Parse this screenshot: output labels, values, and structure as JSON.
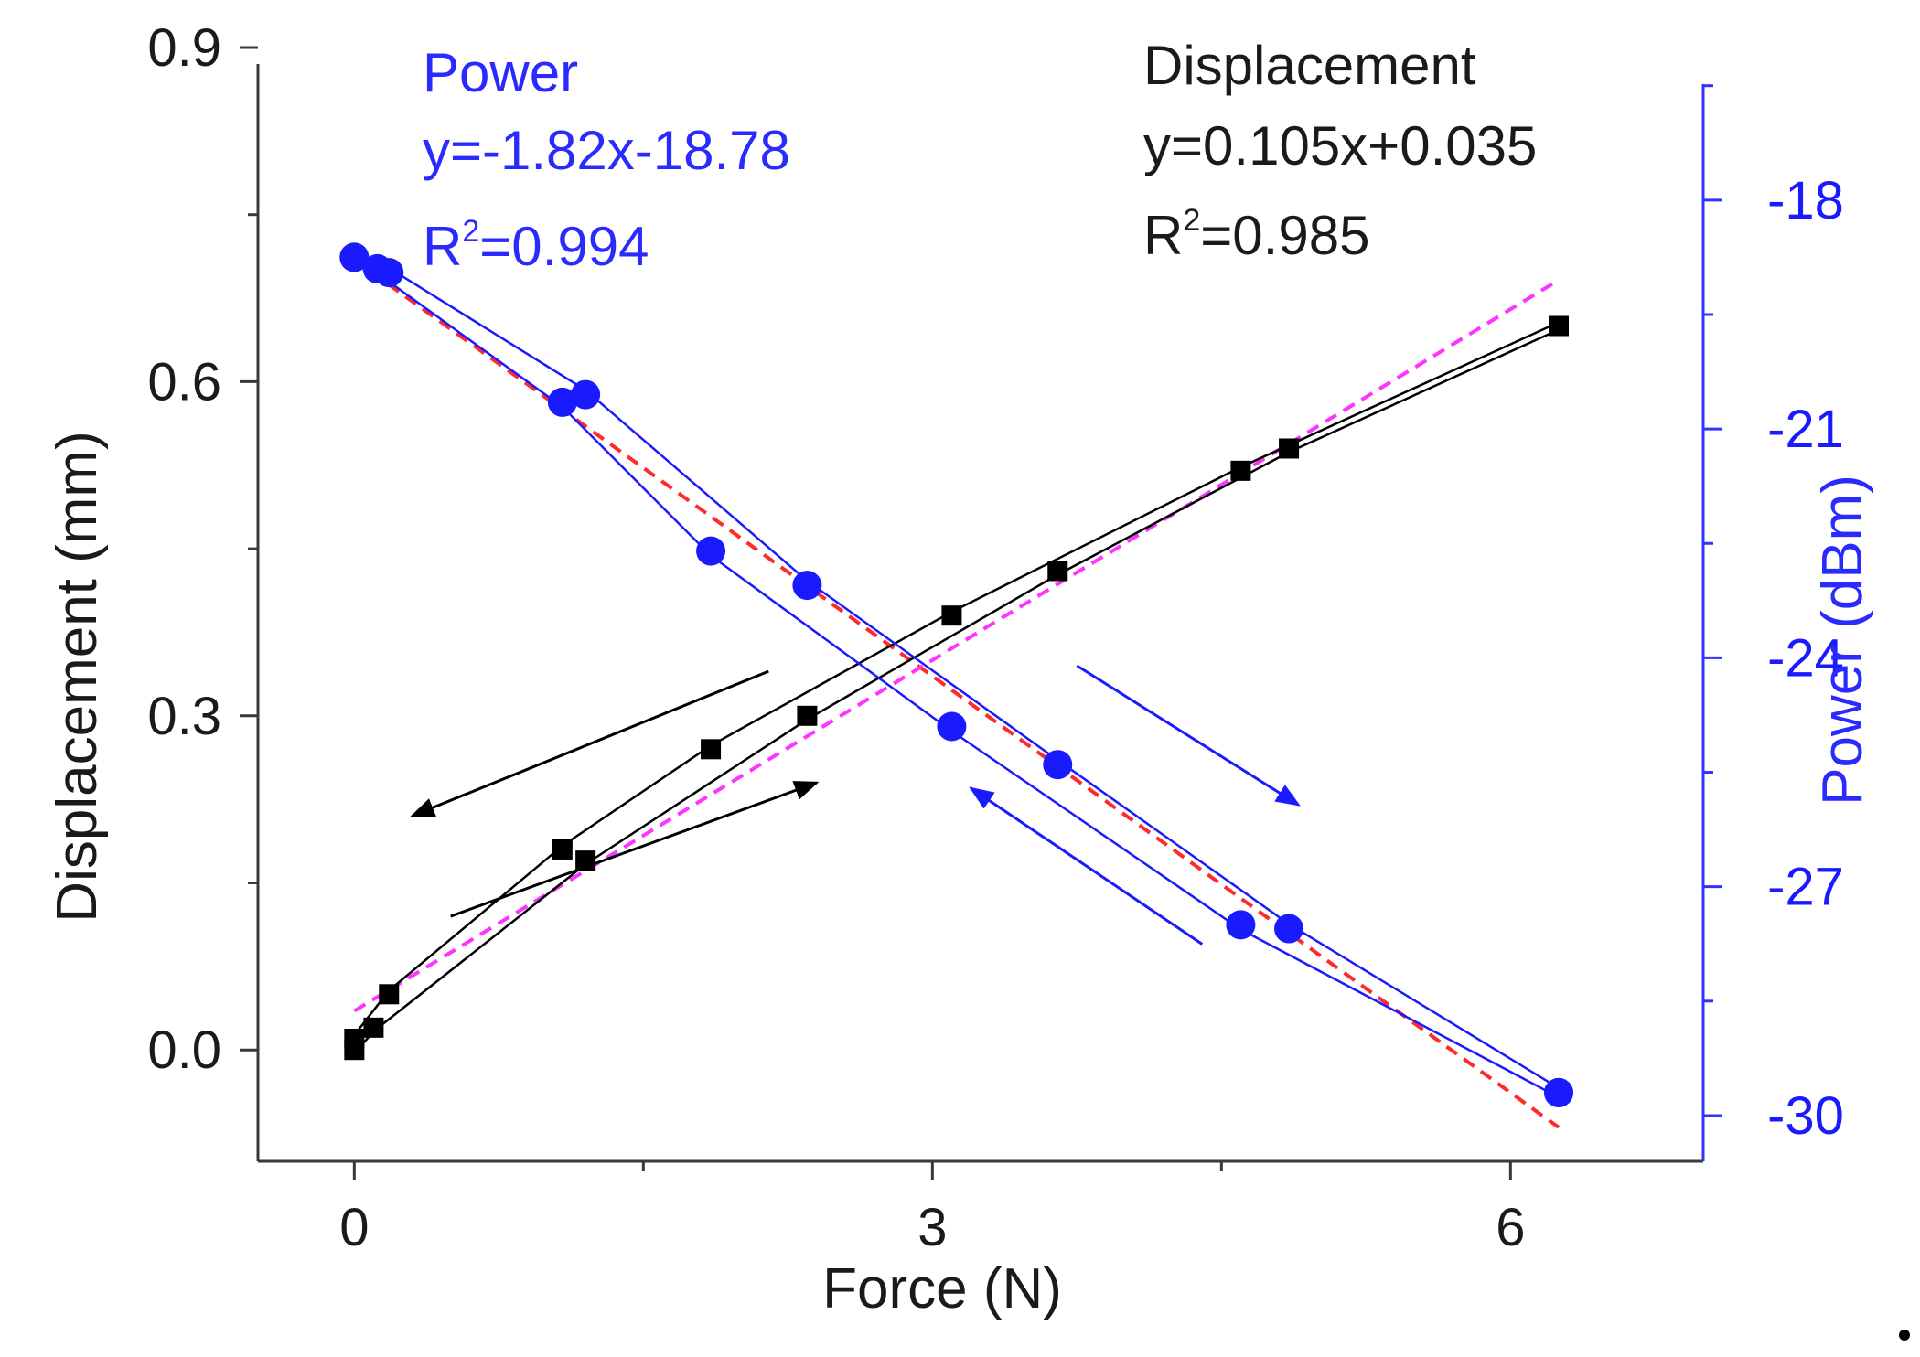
{
  "chart_data": {
    "type": "scatter",
    "xlabel": "Force (N)",
    "ylabel_left": "Displacement (mm)",
    "ylabel_right": "Power (dBm)",
    "xlim": [
      -0.5,
      7.0
    ],
    "ylim_left": [
      -0.1,
      0.9
    ],
    "ylim_right": [
      -30.6,
      -16.0
    ],
    "x_ticks": [
      0,
      3,
      6
    ],
    "x_tick_labels": [
      "0",
      "3",
      "6"
    ],
    "y_left_ticks": [
      0.0,
      0.3,
      0.6,
      0.9
    ],
    "y_left_tick_labels": [
      "0.0",
      "0.3",
      "0.6",
      "0.9"
    ],
    "y_right_ticks": [
      -18,
      -21,
      -24,
      -27,
      -30
    ],
    "y_right_tick_labels": [
      "-18",
      "-21",
      "-24",
      "-27",
      "-30"
    ],
    "grid": false,
    "colors": {
      "displacement": "#000000",
      "power": "#1a1aff",
      "power_fit": "#ff2a2a",
      "displacement_fit": "#ff33ff",
      "right_axis": "#3333ff"
    },
    "annotations": {
      "power_title": "Power",
      "power_equation": "y=-1.82x-18.78",
      "power_r2_prefix": "R",
      "power_r2_sup": "2",
      "power_r2_value": "=0.994",
      "disp_title": "Displacement",
      "disp_equation": "y=0.105x+0.035",
      "disp_r2_prefix": "R",
      "disp_r2_sup": "2",
      "disp_r2_value": "=0.985"
    },
    "series": [
      {
        "axis": "left",
        "marker": "square",
        "loading_path": {
          "x": [
            0.0,
            0.1,
            1.2,
            2.35,
            3.65,
            4.85,
            6.25
          ],
          "y": [
            0.0,
            0.02,
            0.17,
            0.3,
            0.43,
            0.54,
            0.65
          ]
        },
        "unloading_path": {
          "x": [
            6.25,
            4.6,
            3.1,
            1.85,
            1.08,
            0.18,
            0.0
          ],
          "y": [
            0.65,
            0.52,
            0.39,
            0.27,
            0.18,
            0.05,
            0.01
          ]
        },
        "fit": {
          "slope": 0.105,
          "intercept": 0.035,
          "x_range": [
            0,
            6.25
          ]
        }
      },
      {
        "axis": "right",
        "marker": "circle",
        "loading_path": {
          "x": [
            0.0,
            0.12,
            1.08,
            1.85,
            3.1,
            4.6,
            6.25
          ],
          "y": [
            -18.75,
            -18.9,
            -20.65,
            -22.6,
            -24.9,
            -27.5,
            -29.7
          ]
        },
        "unloading_path": {
          "x": [
            6.25,
            4.85,
            3.65,
            2.35,
            1.2,
            0.18,
            0.0
          ],
          "y": [
            -29.7,
            -27.55,
            -25.4,
            -23.05,
            -20.55,
            -18.95,
            -18.75
          ]
        },
        "fit": {
          "slope": -1.82,
          "intercept": -18.78,
          "x_range": [
            0,
            6.25
          ]
        }
      }
    ],
    "direction_arrows": [
      {
        "color": "black",
        "from": [
          0.5,
          0.12
        ],
        "to": [
          2.4,
          0.24
        ]
      },
      {
        "color": "black",
        "from": [
          2.15,
          0.34
        ],
        "to": [
          0.3,
          0.21
        ]
      },
      {
        "color": "blue",
        "from": [
          3.75,
          0.345
        ],
        "to": [
          4.9,
          0.22
        ]
      },
      {
        "color": "blue",
        "from": [
          4.4,
          0.095
        ],
        "to": [
          3.2,
          0.235
        ]
      }
    ]
  }
}
